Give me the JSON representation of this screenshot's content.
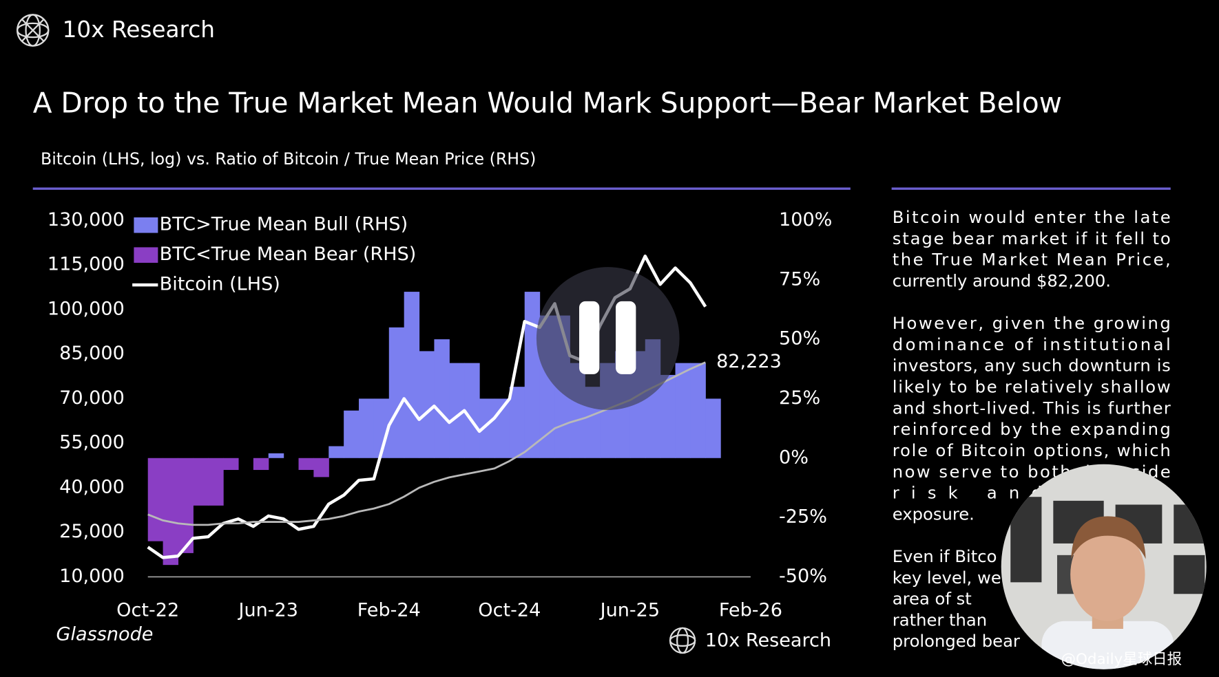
{
  "header": {
    "brand": "10x Research"
  },
  "title": "A Drop to the True Market Mean Would Mark Support—Bear Market Below",
  "subtitle": "Bitcoin (LHS, log) vs. Ratio of Bitcoin / True Mean Price (RHS)",
  "chart_data": {
    "type": "line",
    "x": [
      "2022-10",
      "2022-11",
      "2022-12",
      "2023-01",
      "2023-02",
      "2023-03",
      "2023-04",
      "2023-05",
      "2023-06",
      "2023-07",
      "2023-08",
      "2023-09",
      "2023-10",
      "2023-11",
      "2023-12",
      "2024-01",
      "2024-02",
      "2024-03",
      "2024-04",
      "2024-05",
      "2024-06",
      "2024-07",
      "2024-08",
      "2024-09",
      "2024-10",
      "2024-11",
      "2024-12",
      "2025-01",
      "2025-02",
      "2025-03",
      "2025-04",
      "2025-05",
      "2025-06",
      "2025-07",
      "2025-08",
      "2025-09",
      "2025-10",
      "2025-11"
    ],
    "series": [
      {
        "name": "BTC>True Mean Bull (RHS)",
        "color": "#7b7ff0",
        "axis": "y2",
        "style": "area",
        "values": [
          null,
          null,
          null,
          null,
          null,
          null,
          0,
          null,
          2,
          0,
          null,
          null,
          5,
          20,
          25,
          25,
          55,
          70,
          45,
          50,
          40,
          40,
          25,
          25,
          30,
          70,
          60,
          60,
          40,
          30,
          40,
          45,
          45,
          50,
          35,
          40,
          40,
          25
        ]
      },
      {
        "name": "BTC<True Mean Bear (RHS)",
        "color": "#8a3ec4",
        "axis": "y2",
        "style": "area",
        "values": [
          -35,
          -45,
          -40,
          -20,
          -20,
          -5,
          null,
          -5,
          null,
          null,
          -5,
          -8,
          null,
          null,
          null,
          null,
          null,
          null,
          null,
          null,
          null,
          null,
          null,
          null,
          null,
          null,
          null,
          null,
          null,
          null,
          null,
          null,
          null,
          null,
          null,
          null,
          null,
          null
        ]
      },
      {
        "name": "Bitcoin (LHS)",
        "color": "#ffffff",
        "axis": "y",
        "style": "line",
        "values": [
          20000,
          16500,
          17000,
          23000,
          23500,
          28000,
          29500,
          27000,
          30500,
          29500,
          26000,
          27000,
          34500,
          37500,
          42500,
          43000,
          61000,
          70000,
          63000,
          67500,
          62000,
          66000,
          59000,
          63500,
          70000,
          96000,
          94000,
          102000,
          84500,
          82500,
          94500,
          104000,
          107000,
          118000,
          108500,
          114000,
          109000,
          101000
        ]
      },
      {
        "color": "#b9b9b9",
        "axis": "y",
        "style": "line",
        "values": [
          31000,
          29000,
          28000,
          27500,
          27500,
          28000,
          28000,
          28500,
          28500,
          28500,
          28500,
          29000,
          29500,
          30500,
          32000,
          33000,
          34500,
          37000,
          40000,
          42000,
          43500,
          44500,
          45500,
          46500,
          49000,
          52000,
          56000,
          60000,
          62000,
          63500,
          65500,
          67500,
          69500,
          72500,
          75000,
          77500,
          80000,
          82223
        ],
        "value_labels": [
          null,
          null,
          null,
          null,
          null,
          null,
          null,
          null,
          null,
          null,
          null,
          null,
          null,
          null,
          null,
          null,
          null,
          null,
          null,
          null,
          null,
          null,
          null,
          null,
          null,
          null,
          null,
          null,
          null,
          null,
          null,
          null,
          null,
          null,
          null,
          null,
          null,
          "82,223"
        ]
      }
    ],
    "xlim": [
      "2022-10",
      "2026-02"
    ],
    "xticks": [
      {
        "value": "2022-10",
        "label": "Oct-22"
      },
      {
        "value": "2023-06",
        "label": "Jun-23"
      },
      {
        "value": "2024-02",
        "label": "Feb-24"
      },
      {
        "value": "2024-10",
        "label": "Oct-24"
      },
      {
        "value": "2025-06",
        "label": "Jun-25"
      },
      {
        "value": "2026-02",
        "label": "Feb-26"
      }
    ],
    "ylim": [
      10000,
      130000
    ],
    "yticks": [
      {
        "value": 10000,
        "label": "10,000"
      },
      {
        "value": 25000,
        "label": "25,000"
      },
      {
        "value": 40000,
        "label": "40,000"
      },
      {
        "value": 55000,
        "label": "55,000"
      },
      {
        "value": 70000,
        "label": "70,000"
      },
      {
        "value": 85000,
        "label": "85,000"
      },
      {
        "value": 100000,
        "label": "100,000"
      },
      {
        "value": 115000,
        "label": "115,000"
      },
      {
        "value": 130000,
        "label": "130,000"
      }
    ],
    "y2lim": [
      -50,
      100
    ],
    "y2ticks": [
      {
        "value": -50,
        "label": "-50%"
      },
      {
        "value": -25,
        "label": "-25%"
      },
      {
        "value": 0,
        "label": "0%"
      },
      {
        "value": 25,
        "label": "25%"
      },
      {
        "value": 50,
        "label": "50%"
      },
      {
        "value": 75,
        "label": "75%"
      },
      {
        "value": 100,
        "label": "100%"
      }
    ],
    "legend": "top-left",
    "source": "Glassnode",
    "footer_brand": "10x Research"
  },
  "commentary": [
    [
      "Bitcoin would enter the late",
      "stage bear market if it fell to",
      "the True Market Mean Price,",
      "currently around $82,200."
    ],
    [
      "However, given the growing",
      "dominance of institutional",
      "investors, any such downturn is",
      "likely to be relatively shallow",
      "and short-lived. This is further",
      "reinforced by the expanding",
      "role of Bitcoin options, which",
      "now serve to both downside",
      "risk and hedge",
      "exposure."
    ],
    [
      "Even if Bitco",
      "key level, we",
      "area of st",
      "rather than",
      "prolonged bear"
    ]
  ],
  "watermark": "@Odaily星球日报"
}
